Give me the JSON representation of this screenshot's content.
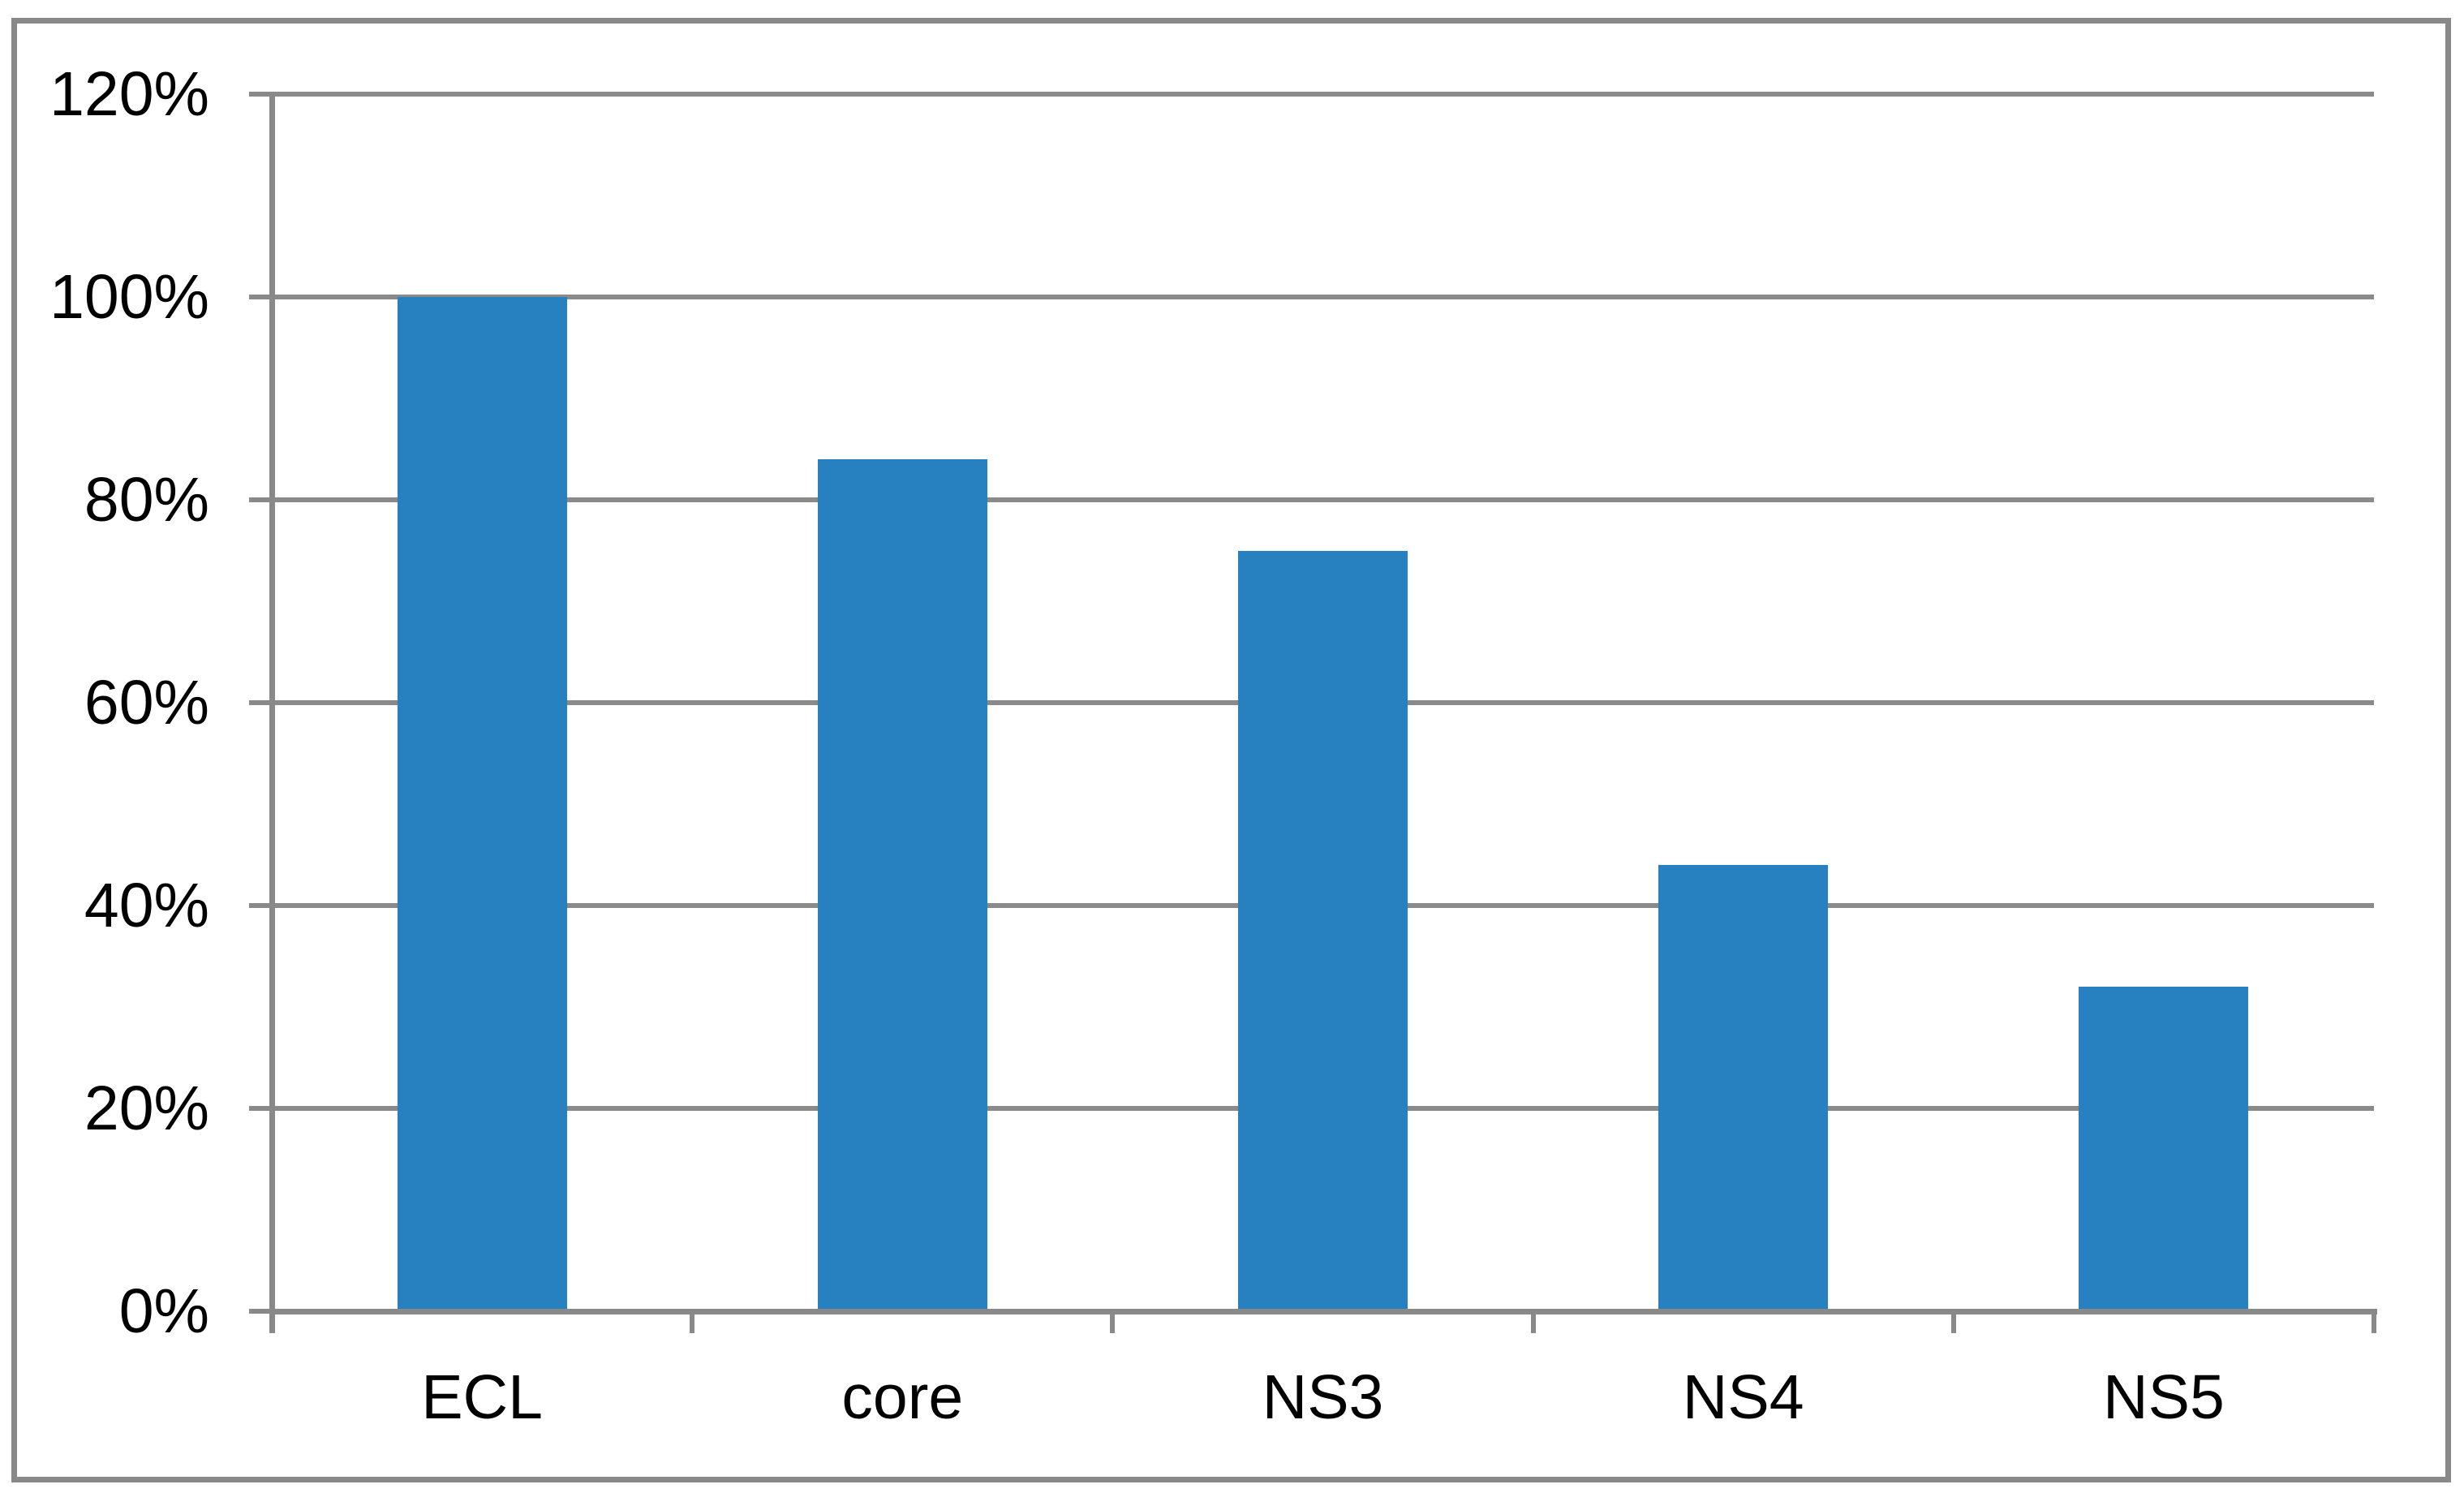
{
  "chart_data": {
    "type": "bar",
    "title": "",
    "xlabel": "",
    "ylabel": "",
    "categories": [
      "ECL",
      "core",
      "NS3",
      "NS4",
      "NS5"
    ],
    "values": [
      100,
      84,
      75,
      44,
      32
    ],
    "value_unit": "%",
    "ylim": [
      0,
      120
    ],
    "ytick_step": 20,
    "ytick_labels": [
      "0%",
      "20%",
      "40%",
      "60%",
      "80%",
      "100%",
      "120%"
    ],
    "grid": "horizontal",
    "legend": "none",
    "colors": {
      "bar": "#2781C0",
      "gridline": "#8A8A8A",
      "axis": "#898989",
      "tick": "#898989",
      "chart_border": "#898989",
      "label_text": "#000000",
      "background": "#FFFFFF"
    }
  }
}
